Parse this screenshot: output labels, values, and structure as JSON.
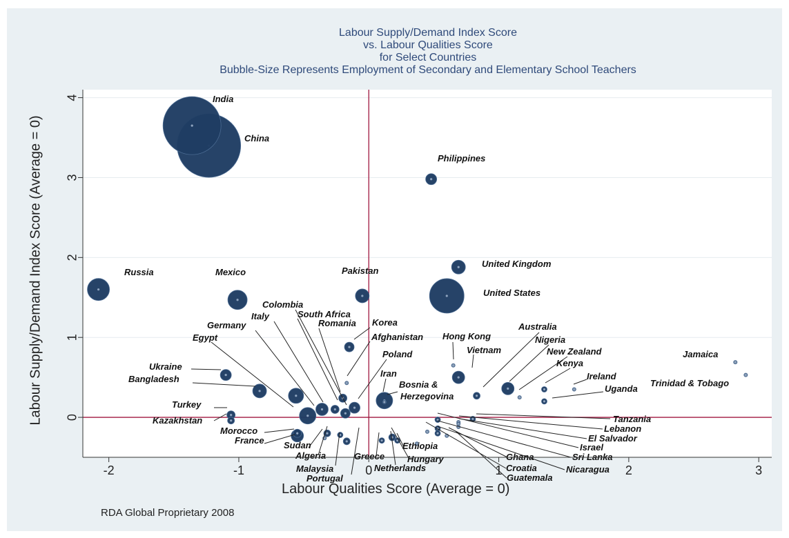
{
  "chart_data": {
    "type": "scatter",
    "subtype": "bubble",
    "title_lines": [
      "Labour Supply/Demand Index Score",
      "vs. Labour Qualities Score",
      "for Select Countries",
      "Bubble-Size Represents Employment of Secondary and Elementary School Teachers"
    ],
    "xlabel": "Labour Qualities Score (Average = 0)",
    "ylabel": "Labour Supply/Demand Index Score (Average = 0)",
    "xlim": [
      -2.2,
      3.1
    ],
    "ylim": [
      -0.5,
      4.1
    ],
    "xticks": [
      "-2",
      "-1",
      "0",
      "1",
      "2",
      "3"
    ],
    "yticks": [
      "0",
      "1",
      "2",
      "3",
      "4"
    ],
    "reference_lines": {
      "x": 0,
      "y": 0
    },
    "grid": "horizontal",
    "colors": {
      "bubble": "#1f3d63",
      "reference": "#a0163f",
      "title": "#2f4a7a",
      "plot_bg": "#ffffff",
      "panel_bg": "#eaf0f3"
    },
    "points": [
      {
        "label": "India",
        "x": -1.36,
        "y": 3.65,
        "size": 42
      },
      {
        "label": "China",
        "x": -1.23,
        "y": 3.4,
        "size": 46
      },
      {
        "label": "Philippines",
        "x": 0.48,
        "y": 2.98,
        "size": 8
      },
      {
        "label": "United Kingdom",
        "x": 0.69,
        "y": 1.88,
        "size": 10
      },
      {
        "label": "United States",
        "x": 0.6,
        "y": 1.52,
        "size": 25
      },
      {
        "label": "Russia",
        "x": -2.08,
        "y": 1.6,
        "size": 16
      },
      {
        "label": "Mexico",
        "x": -1.01,
        "y": 1.47,
        "size": 14
      },
      {
        "label": "Pakistan",
        "x": -0.05,
        "y": 1.52,
        "size": 10
      },
      {
        "label": "Korea",
        "x": -0.15,
        "y": 0.88,
        "size": 7
      },
      {
        "label": "Afghanistan",
        "x": -0.17,
        "y": 0.43,
        "size": 2
      },
      {
        "label": "Romania",
        "x": -0.2,
        "y": 0.24,
        "size": 6
      },
      {
        "label": "South Africa",
        "x": -0.26,
        "y": 0.1,
        "size": 6
      },
      {
        "label": "Colombia",
        "x": -0.18,
        "y": 0.05,
        "size": 7
      },
      {
        "label": "Poland",
        "x": -0.11,
        "y": 0.12,
        "size": 8
      },
      {
        "label": "Italy",
        "x": -0.36,
        "y": 0.1,
        "size": 9
      },
      {
        "label": "Germany",
        "x": -0.56,
        "y": 0.27,
        "size": 11
      },
      {
        "label": "Egypt",
        "x": -0.47,
        "y": 0.02,
        "size": 12
      },
      {
        "label": "Iran",
        "x": 0.12,
        "y": 0.21,
        "size": 12
      },
      {
        "label": "Bosnia & Herzegovina",
        "x": 0.12,
        "y": 0.19,
        "size": 3
      },
      {
        "label": "Ukraine",
        "x": -1.1,
        "y": 0.53,
        "size": 8
      },
      {
        "label": "Bangladesh",
        "x": -0.84,
        "y": 0.33,
        "size": 10
      },
      {
        "label": "Turkey",
        "x": -1.06,
        "y": 0.03,
        "size": 6
      },
      {
        "label": "Kazakhstan",
        "x": -1.06,
        "y": -0.04,
        "size": 5
      },
      {
        "label": "Morocco",
        "x": -0.55,
        "y": -0.23,
        "size": 9
      },
      {
        "label": "France",
        "x": -0.55,
        "y": -0.2,
        "size": 6
      },
      {
        "label": "Sudan",
        "x": -0.34,
        "y": -0.26,
        "size": 2
      },
      {
        "label": "Algeria",
        "x": -0.32,
        "y": -0.2,
        "size": 5
      },
      {
        "label": "Malaysia",
        "x": -0.17,
        "y": -0.3,
        "size": 5
      },
      {
        "label": "Portugal",
        "x": -0.22,
        "y": -0.22,
        "size": 4
      },
      {
        "label": "Greece",
        "x": 0.1,
        "y": -0.29,
        "size": 4
      },
      {
        "label": "Netherlands",
        "x": 0.18,
        "y": -0.25,
        "size": 5
      },
      {
        "label": "Ethiopia",
        "x": 0.22,
        "y": -0.29,
        "size": 4
      },
      {
        "label": "Hungary",
        "x": 0.37,
        "y": -0.33,
        "size": 3
      },
      {
        "label": "Hong Kong",
        "x": 0.65,
        "y": 0.65,
        "size": 2
      },
      {
        "label": "Vietnam",
        "x": 0.69,
        "y": 0.5,
        "size": 9
      },
      {
        "label": "Australia",
        "x": 1.07,
        "y": 0.36,
        "size": 9
      },
      {
        "label": "Nigeria",
        "x": 0.83,
        "y": 0.27,
        "size": 5
      },
      {
        "label": "New Zealand",
        "x": 1.16,
        "y": 0.25,
        "size": 2
      },
      {
        "label": "Kenya",
        "x": 1.35,
        "y": 0.35,
        "size": 4
      },
      {
        "label": "Ireland",
        "x": 1.58,
        "y": 0.35,
        "size": 2
      },
      {
        "label": "Uganda",
        "x": 1.35,
        "y": 0.2,
        "size": 4
      },
      {
        "label": "Jamaica",
        "x": 2.82,
        "y": 0.69,
        "size": 3
      },
      {
        "label": "Trinidad & Tobago",
        "x": 2.9,
        "y": 0.53,
        "size": 3
      },
      {
        "label": "Tanzania",
        "x": 0.8,
        "y": -0.02,
        "size": 4
      },
      {
        "label": "Lebanon",
        "x": 0.69,
        "y": -0.06,
        "size": 3
      },
      {
        "label": "El Salvador",
        "x": 0.69,
        "y": -0.12,
        "size": 3
      },
      {
        "label": "Israel",
        "x": 0.53,
        "y": -0.03,
        "size": 4
      },
      {
        "label": "Sri Lanka",
        "x": 0.53,
        "y": -0.14,
        "size": 4
      },
      {
        "label": "Nicaragua",
        "x": 0.53,
        "y": -0.2,
        "size": 4
      },
      {
        "label": "Ghana",
        "x": 0.6,
        "y": -0.23,
        "size": 3
      },
      {
        "label": "Croatia",
        "x": 0.45,
        "y": -0.18,
        "size": 3
      },
      {
        "label": "Guatemala",
        "x": 0.69,
        "y": -0.08,
        "size": 2
      }
    ]
  },
  "footer": {
    "credit": "RDA Global Proprietary 2008"
  }
}
